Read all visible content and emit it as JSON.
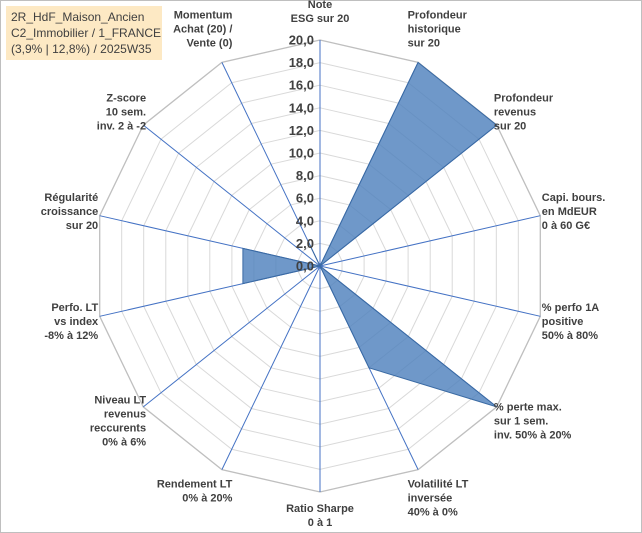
{
  "title_box": {
    "line1": "2R_HdF_Maison_Ancien",
    "line2": "C2_Immobilier / 1_FRANCE",
    "line3": "(3,9% | 12,8%) / 2025W35"
  },
  "colors": {
    "fill": "#4f81bd",
    "stroke": "#3a6aa3",
    "spoke": "#4472c4",
    "grid": "#d9d9d9",
    "title_bg": "#fde9c4"
  },
  "chart_data": {
    "type": "radar",
    "rmin": 0,
    "rmax": 20,
    "tick_step": 2,
    "tick_labels": [
      "0,0",
      "2,0",
      "4,0",
      "6,0",
      "8,0",
      "10,0",
      "12,0",
      "14,0",
      "16,0",
      "18,0",
      "20,0"
    ],
    "categories": [
      {
        "label": [
          "Note",
          "ESG sur 20"
        ],
        "value": 0
      },
      {
        "label": [
          "Profondeur",
          "historique",
          "sur 20"
        ],
        "value": 20
      },
      {
        "label": [
          "Profondeur",
          "revenus",
          "sur 20"
        ],
        "value": 20
      },
      {
        "label": [
          "Capi. bours.",
          "en MdEUR",
          "0 à 60 G€"
        ],
        "value": 0
      },
      {
        "label": [
          "% perfo 1A",
          "positive",
          "50% à 80%"
        ],
        "value": 0
      },
      {
        "label": [
          "% perte max.",
          "sur 1 sem.",
          "inv. 50% à 20%"
        ],
        "value": 20
      },
      {
        "label": [
          "Volatilité LT",
          "inversée",
          "40% à 0%"
        ],
        "value": 10
      },
      {
        "label": [
          "Ratio Sharpe",
          "0 à 1"
        ],
        "value": 0
      },
      {
        "label": [
          "Rendement LT",
          "0% à 20%"
        ],
        "value": 0
      },
      {
        "label": [
          "Niveau LT",
          "revenus",
          "reccurents",
          "0% à 6%"
        ],
        "value": 0
      },
      {
        "label": [
          "Perfo. LT",
          "vs index",
          "-8% à 12%"
        ],
        "value": 7
      },
      {
        "label": [
          "Régularité",
          "croissance",
          "sur 20"
        ],
        "value": 7
      },
      {
        "label": [
          "Z-score",
          "10 sem.",
          "inv. 2 à -2"
        ],
        "value": 0
      },
      {
        "label": [
          "Momentum",
          "Achat (20) /",
          "Vente (0)"
        ],
        "value": 2.5
      }
    ]
  }
}
